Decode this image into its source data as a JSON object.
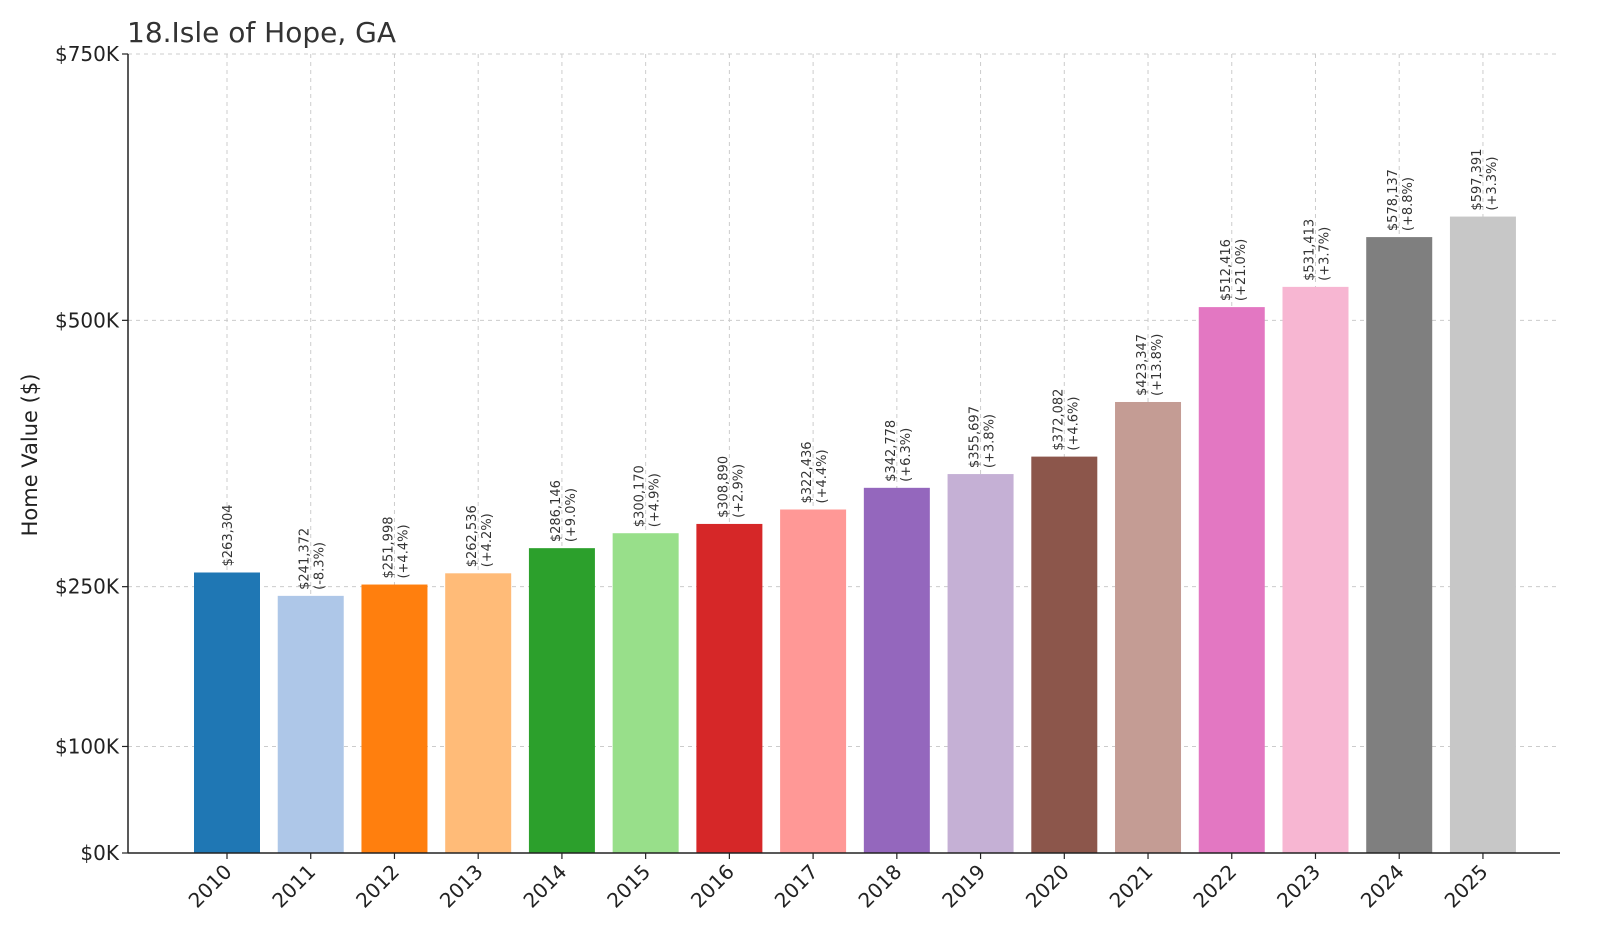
{
  "chart_data": {
    "type": "bar",
    "title": "18.Isle of Hope, GA",
    "xlabel": "",
    "ylabel": "Home Value ($)",
    "ylim": [
      0,
      750000
    ],
    "grid": true,
    "yticks": [
      {
        "value": 0,
        "label": "$0K"
      },
      {
        "value": 100000,
        "label": "$100K"
      },
      {
        "value": 250000,
        "label": "$250K"
      },
      {
        "value": 500000,
        "label": "$500K"
      },
      {
        "value": 750000,
        "label": "$750K"
      }
    ],
    "categories": [
      "2010",
      "2011",
      "2012",
      "2013",
      "2014",
      "2015",
      "2016",
      "2017",
      "2018",
      "2019",
      "2020",
      "2021",
      "2022",
      "2023",
      "2024",
      "2025"
    ],
    "values": [
      263304,
      241372,
      251998,
      262536,
      286146,
      300170,
      308890,
      322436,
      342778,
      355697,
      372082,
      423347,
      512416,
      531413,
      578137,
      597391
    ],
    "value_labels": [
      "$263,304",
      "$241,372",
      "$251,998",
      "$262,536",
      "$286,146",
      "$300,170",
      "$308,890",
      "$322,436",
      "$342,778",
      "$355,697",
      "$372,082",
      "$423,347",
      "$512,416",
      "$531,413",
      "$578,137",
      "$597,391"
    ],
    "change_labels": [
      "",
      "(-8.3%)",
      "(+4.4%)",
      "(+4.2%)",
      "(+9.0%)",
      "(+4.9%)",
      "(+2.9%)",
      "(+4.4%)",
      "(+6.3%)",
      "(+3.8%)",
      "(+4.6%)",
      "(+13.8%)",
      "(+21.0%)",
      "(+3.7%)",
      "(+8.8%)",
      "(+3.3%)"
    ],
    "colors": [
      "#1f77b4",
      "#aec7e8",
      "#ff7f0e",
      "#ffbb78",
      "#2ca02c",
      "#98df8a",
      "#d62728",
      "#ff9896",
      "#9467bd",
      "#c5b0d5",
      "#8c564b",
      "#c49c94",
      "#e377c2",
      "#f7b6d2",
      "#7f7f7f",
      "#c7c7c7"
    ]
  }
}
